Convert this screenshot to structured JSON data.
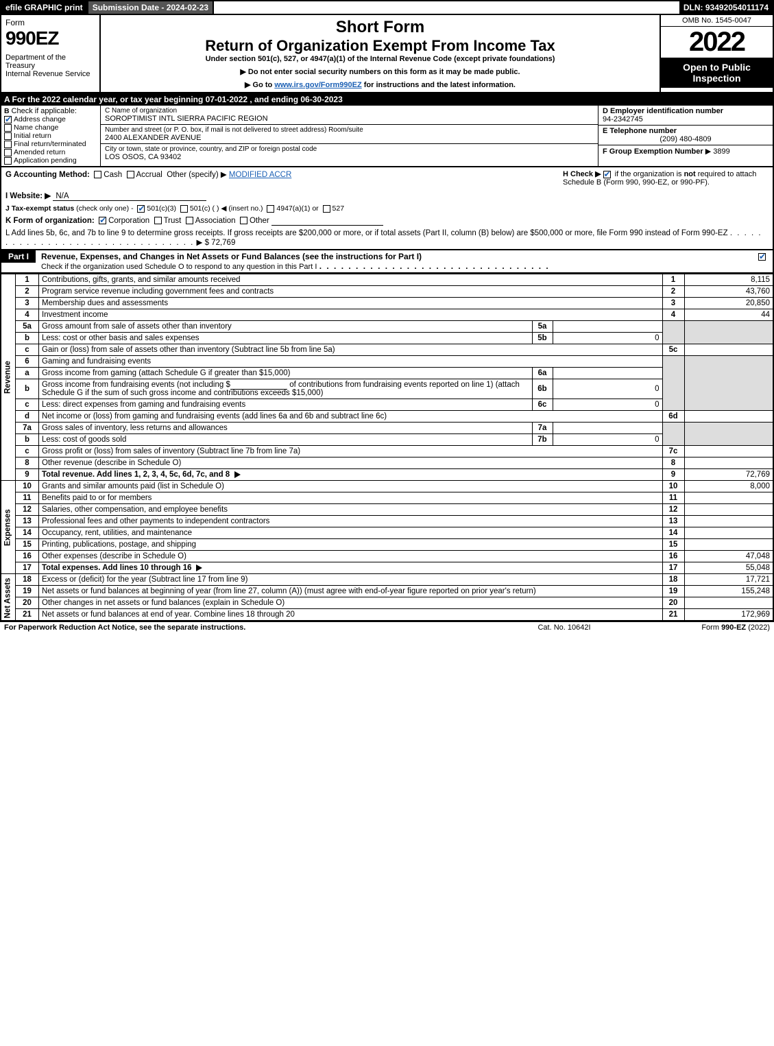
{
  "top": {
    "efile": "efile GRAPHIC print",
    "subdate": "Submission Date - 2024-02-23",
    "dln": "DLN: 93492054011174"
  },
  "header": {
    "form_label": "Form",
    "form_no": "990EZ",
    "dept": "Department of the Treasury\nInternal Revenue Service",
    "short": "Short Form",
    "return": "Return of Organization Exempt From Income Tax",
    "under": "Under section 501(c), 527, or 4947(a)(1) of the Internal Revenue Code (except private foundations)",
    "donot": "▶ Do not enter social security numbers on this form as it may be made public.",
    "goto_pre": "▶ Go to ",
    "goto_link": "www.irs.gov/Form990EZ",
    "goto_post": " for instructions and the latest information.",
    "omb": "OMB No. 1545-0047",
    "year": "2022",
    "open": "Open to Public Inspection"
  },
  "row_a": "A  For the 2022 calendar year, or tax year beginning 07-01-2022 , and ending 06-30-2023",
  "entity": {
    "b_label": "B",
    "b_check": "Check if applicable:",
    "b_items": [
      {
        "label": "Address change",
        "checked": true
      },
      {
        "label": "Name change",
        "checked": false
      },
      {
        "label": "Initial return",
        "checked": false
      },
      {
        "label": "Final return/terminated",
        "checked": false
      },
      {
        "label": "Amended return",
        "checked": false
      },
      {
        "label": "Application pending",
        "checked": false
      }
    ],
    "c_name_cap": "C Name of organization",
    "c_name": "SOROPTIMIST INTL SIERRA PACIFIC REGION",
    "c_addr_cap": "Number and street (or P. O. box, if mail is not delivered to street address)        Room/suite",
    "c_addr": "2400 ALEXANDER AVENUE",
    "c_city_cap": "City or town, state or province, country, and ZIP or foreign postal code",
    "c_city": "LOS OSOS, CA  93402",
    "d_label": "D Employer identification number",
    "d_val": "94-2342745",
    "e_label": "E Telephone number",
    "e_val": "(209) 480-4809",
    "f_label": "F Group Exemption Number",
    "f_val": "▶ 3899"
  },
  "g": {
    "label": "G Accounting Method:",
    "cash": "Cash",
    "accrual": "Accrual",
    "other": "Other (specify) ▶",
    "other_val": "MODIFIED ACCR"
  },
  "h": {
    "text1": "H  Check ▶",
    "text2": " if the organization is ",
    "not": "not",
    "text3": " required to attach Schedule B (Form 990, 990-EZ, or 990-PF)."
  },
  "i": {
    "label": "I Website: ▶",
    "val": "N/A"
  },
  "j": {
    "label": "J Tax-exempt status",
    "sub": "(check only one) -",
    "o1": "501(c)(3)",
    "o2": "501(c) (   ) ◀ (insert no.)",
    "o3": "4947(a)(1) or",
    "o4": "527"
  },
  "k": {
    "label": "K Form of organization:",
    "o1": "Corporation",
    "o2": "Trust",
    "o3": "Association",
    "o4": "Other"
  },
  "l": {
    "text": "L Add lines 5b, 6c, and 7b to line 9 to determine gross receipts. If gross receipts are $200,000 or more, or if total assets (Part II, column (B) below) are $500,000 or more, file Form 990 instead of Form 990-EZ",
    "val": "▶ $ 72,769"
  },
  "part1": {
    "tag": "Part I",
    "title": "Revenue, Expenses, and Changes in Net Assets or Fund Balances (see the instructions for Part I)",
    "sub": "Check if the organization used Schedule O to respond to any question in this Part I"
  },
  "vlabels": {
    "rev": "Revenue",
    "exp": "Expenses",
    "na": "Net Assets"
  },
  "lines": {
    "1": {
      "desc": "Contributions, gifts, grants, and similar amounts received",
      "rn": "1",
      "rv": "8,115"
    },
    "2": {
      "desc": "Program service revenue including government fees and contracts",
      "rn": "2",
      "rv": "43,760"
    },
    "3": {
      "desc": "Membership dues and assessments",
      "rn": "3",
      "rv": "20,850"
    },
    "4": {
      "desc": "Investment income",
      "rn": "4",
      "rv": "44"
    },
    "5a": {
      "desc": "Gross amount from sale of assets other than inventory",
      "mn": "5a",
      "mv": ""
    },
    "5b": {
      "desc": "Less: cost or other basis and sales expenses",
      "mn": "5b",
      "mv": "0"
    },
    "5c": {
      "desc": "Gain or (loss) from sale of assets other than inventory (Subtract line 5b from line 5a)",
      "rn": "5c",
      "rv": ""
    },
    "6": {
      "desc": "Gaming and fundraising events"
    },
    "6a": {
      "desc": "Gross income from gaming (attach Schedule G if greater than $15,000)",
      "mn": "6a",
      "mv": ""
    },
    "6b": {
      "desc_pre": "Gross income from fundraising events (not including $",
      "desc_mid": "of contributions from fundraising events reported on line 1) (attach Schedule G if the sum of such gross income and contributions exceeds $15,000)",
      "mn": "6b",
      "mv": "0"
    },
    "6c": {
      "desc": "Less: direct expenses from gaming and fundraising events",
      "mn": "6c",
      "mv": "0"
    },
    "6d": {
      "desc": "Net income or (loss) from gaming and fundraising events (add lines 6a and 6b and subtract line 6c)",
      "rn": "6d",
      "rv": ""
    },
    "7a": {
      "desc": "Gross sales of inventory, less returns and allowances",
      "mn": "7a",
      "mv": ""
    },
    "7b": {
      "desc": "Less: cost of goods sold",
      "mn": "7b",
      "mv": "0"
    },
    "7c": {
      "desc": "Gross profit or (loss) from sales of inventory (Subtract line 7b from line 7a)",
      "rn": "7c",
      "rv": ""
    },
    "8": {
      "desc": "Other revenue (describe in Schedule O)",
      "rn": "8",
      "rv": ""
    },
    "9": {
      "desc": "Total revenue. Add lines 1, 2, 3, 4, 5c, 6d, 7c, and 8",
      "rn": "9",
      "rv": "72,769"
    },
    "10": {
      "desc": "Grants and similar amounts paid (list in Schedule O)",
      "rn": "10",
      "rv": "8,000"
    },
    "11": {
      "desc": "Benefits paid to or for members",
      "rn": "11",
      "rv": ""
    },
    "12": {
      "desc": "Salaries, other compensation, and employee benefits",
      "rn": "12",
      "rv": ""
    },
    "13": {
      "desc": "Professional fees and other payments to independent contractors",
      "rn": "13",
      "rv": ""
    },
    "14": {
      "desc": "Occupancy, rent, utilities, and maintenance",
      "rn": "14",
      "rv": ""
    },
    "15": {
      "desc": "Printing, publications, postage, and shipping",
      "rn": "15",
      "rv": ""
    },
    "16": {
      "desc": "Other expenses (describe in Schedule O)",
      "rn": "16",
      "rv": "47,048"
    },
    "17": {
      "desc": "Total expenses. Add lines 10 through 16",
      "rn": "17",
      "rv": "55,048"
    },
    "18": {
      "desc": "Excess or (deficit) for the year (Subtract line 17 from line 9)",
      "rn": "18",
      "rv": "17,721"
    },
    "19": {
      "desc": "Net assets or fund balances at beginning of year (from line 27, column (A)) (must agree with end-of-year figure reported on prior year's return)",
      "rn": "19",
      "rv": "155,248"
    },
    "20": {
      "desc": "Other changes in net assets or fund balances (explain in Schedule O)",
      "rn": "20",
      "rv": ""
    },
    "21": {
      "desc": "Net assets or fund balances at end of year. Combine lines 18 through 20",
      "rn": "21",
      "rv": "172,969"
    }
  },
  "footer": {
    "l": "For Paperwork Reduction Act Notice, see the separate instructions.",
    "c": "Cat. No. 10642I",
    "r_pre": "Form ",
    "r_form": "990-EZ",
    "r_post": " (2022)"
  }
}
